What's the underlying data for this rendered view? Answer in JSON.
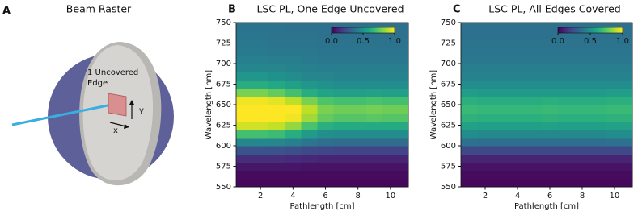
{
  "panel_a": {
    "label": "A",
    "title": "Beam Raster",
    "annotation_lines": [
      "1 Uncovered",
      "Edge"
    ],
    "x_arrow": "x",
    "y_arrow": "y"
  },
  "chart_data": [
    {
      "type": "heatmap",
      "panel_label": "B",
      "title": "LSC PL, One Edge Uncovered",
      "x_label": "Pathlength [cm]",
      "y_label": "Wavelength [nm]",
      "colormap": "viridis",
      "clim": [
        0,
        1
      ],
      "cticks": [
        {
          "value": 0,
          "label": "0.0"
        },
        {
          "value": 0.5,
          "label": "0.5"
        },
        {
          "value": 1,
          "label": "1.0"
        }
      ],
      "xlim": [
        0.5,
        11.1
      ],
      "xticks": [
        2,
        4,
        6,
        8,
        10
      ],
      "ylim": [
        550,
        750
      ],
      "yticks": [
        550,
        575,
        600,
        625,
        650,
        675,
        700,
        725,
        750
      ],
      "x": [
        1,
        2,
        3,
        4,
        5,
        6,
        7,
        8,
        9,
        10
      ],
      "y": [
        555,
        565,
        575,
        585,
        595,
        605,
        615,
        625,
        635,
        645,
        655,
        665,
        675,
        685,
        695,
        705,
        715,
        725,
        735,
        745
      ],
      "z": [
        [
          0.02,
          0.02,
          0.02,
          0.02,
          0.02,
          0.02,
          0.02,
          0.02,
          0.02,
          0.02
        ],
        [
          0.03,
          0.03,
          0.03,
          0.03,
          0.03,
          0.03,
          0.03,
          0.03,
          0.03,
          0.03
        ],
        [
          0.06,
          0.06,
          0.06,
          0.06,
          0.05,
          0.05,
          0.05,
          0.05,
          0.05,
          0.05
        ],
        [
          0.13,
          0.13,
          0.13,
          0.12,
          0.11,
          0.1,
          0.1,
          0.1,
          0.1,
          0.1
        ],
        [
          0.26,
          0.26,
          0.25,
          0.24,
          0.22,
          0.21,
          0.2,
          0.2,
          0.2,
          0.2
        ],
        [
          0.46,
          0.46,
          0.45,
          0.43,
          0.39,
          0.36,
          0.35,
          0.35,
          0.35,
          0.35
        ],
        [
          0.7,
          0.7,
          0.68,
          0.62,
          0.54,
          0.49,
          0.48,
          0.48,
          0.48,
          0.48
        ],
        [
          0.93,
          0.93,
          0.91,
          0.84,
          0.71,
          0.63,
          0.61,
          0.61,
          0.61,
          0.61
        ],
        [
          1,
          1,
          1,
          0.98,
          0.86,
          0.76,
          0.73,
          0.73,
          0.74,
          0.73
        ],
        [
          1,
          1,
          1,
          1,
          0.9,
          0.8,
          0.78,
          0.78,
          0.79,
          0.78
        ],
        [
          0.98,
          0.98,
          0.96,
          0.9,
          0.8,
          0.72,
          0.7,
          0.7,
          0.71,
          0.7
        ],
        [
          0.8,
          0.8,
          0.76,
          0.7,
          0.62,
          0.58,
          0.56,
          0.56,
          0.57,
          0.56
        ],
        [
          0.62,
          0.62,
          0.6,
          0.56,
          0.52,
          0.5,
          0.48,
          0.48,
          0.48,
          0.48
        ],
        [
          0.52,
          0.52,
          0.5,
          0.48,
          0.46,
          0.45,
          0.44,
          0.44,
          0.44,
          0.44
        ],
        [
          0.46,
          0.46,
          0.45,
          0.44,
          0.43,
          0.42,
          0.42,
          0.42,
          0.42,
          0.42
        ],
        [
          0.43,
          0.43,
          0.42,
          0.42,
          0.41,
          0.4,
          0.4,
          0.4,
          0.4,
          0.4
        ],
        [
          0.41,
          0.41,
          0.4,
          0.4,
          0.4,
          0.39,
          0.39,
          0.39,
          0.39,
          0.39
        ],
        [
          0.4,
          0.4,
          0.39,
          0.39,
          0.39,
          0.38,
          0.38,
          0.38,
          0.38,
          0.38
        ],
        [
          0.39,
          0.39,
          0.38,
          0.38,
          0.38,
          0.37,
          0.37,
          0.37,
          0.37,
          0.37
        ],
        [
          0.38,
          0.38,
          0.38,
          0.37,
          0.37,
          0.37,
          0.37,
          0.37,
          0.37,
          0.37
        ]
      ]
    },
    {
      "type": "heatmap",
      "panel_label": "C",
      "title": "LSC PL, All Edges Covered",
      "x_label": "Pathlength [cm]",
      "y_label": "Wavelength [nm]",
      "colormap": "viridis",
      "clim": [
        0,
        1
      ],
      "cticks": [
        {
          "value": 0,
          "label": "0.0"
        },
        {
          "value": 0.5,
          "label": "0.5"
        },
        {
          "value": 1,
          "label": "1.0"
        }
      ],
      "xlim": [
        0.5,
        11.1
      ],
      "xticks": [
        2,
        4,
        6,
        8,
        10
      ],
      "ylim": [
        550,
        750
      ],
      "yticks": [
        550,
        575,
        600,
        625,
        650,
        675,
        700,
        725,
        750
      ],
      "x": [
        1,
        2,
        3,
        4,
        5,
        6,
        7,
        8,
        9,
        10
      ],
      "y": [
        555,
        565,
        575,
        585,
        595,
        605,
        615,
        625,
        635,
        645,
        655,
        665,
        675,
        685,
        695,
        705,
        715,
        725,
        735,
        745
      ],
      "z": [
        [
          0.02,
          0.02,
          0.02,
          0.02,
          0.02,
          0.02,
          0.02,
          0.02,
          0.02,
          0.02
        ],
        [
          0.03,
          0.03,
          0.03,
          0.03,
          0.03,
          0.03,
          0.03,
          0.03,
          0.03,
          0.03
        ],
        [
          0.05,
          0.05,
          0.05,
          0.05,
          0.05,
          0.05,
          0.05,
          0.05,
          0.05,
          0.05
        ],
        [
          0.1,
          0.1,
          0.1,
          0.1,
          0.1,
          0.1,
          0.1,
          0.1,
          0.1,
          0.1
        ],
        [
          0.22,
          0.22,
          0.22,
          0.22,
          0.22,
          0.22,
          0.22,
          0.22,
          0.22,
          0.22
        ],
        [
          0.37,
          0.36,
          0.36,
          0.36,
          0.36,
          0.36,
          0.36,
          0.36,
          0.36,
          0.37
        ],
        [
          0.48,
          0.47,
          0.47,
          0.47,
          0.47,
          0.47,
          0.47,
          0.47,
          0.47,
          0.48
        ],
        [
          0.57,
          0.56,
          0.56,
          0.56,
          0.56,
          0.57,
          0.56,
          0.56,
          0.56,
          0.57
        ],
        [
          0.64,
          0.63,
          0.63,
          0.63,
          0.63,
          0.64,
          0.63,
          0.63,
          0.63,
          0.64
        ],
        [
          0.67,
          0.66,
          0.66,
          0.66,
          0.66,
          0.67,
          0.66,
          0.66,
          0.66,
          0.67
        ],
        [
          0.63,
          0.62,
          0.62,
          0.62,
          0.62,
          0.63,
          0.62,
          0.62,
          0.62,
          0.63
        ],
        [
          0.55,
          0.54,
          0.54,
          0.54,
          0.54,
          0.54,
          0.54,
          0.54,
          0.54,
          0.55
        ],
        [
          0.48,
          0.48,
          0.48,
          0.48,
          0.48,
          0.48,
          0.48,
          0.48,
          0.48,
          0.48
        ],
        [
          0.44,
          0.44,
          0.44,
          0.44,
          0.44,
          0.44,
          0.44,
          0.44,
          0.44,
          0.44
        ],
        [
          0.42,
          0.42,
          0.42,
          0.42,
          0.42,
          0.42,
          0.42,
          0.42,
          0.42,
          0.42
        ],
        [
          0.4,
          0.4,
          0.4,
          0.4,
          0.4,
          0.4,
          0.4,
          0.4,
          0.4,
          0.4
        ],
        [
          0.39,
          0.39,
          0.39,
          0.39,
          0.39,
          0.39,
          0.39,
          0.39,
          0.39,
          0.39
        ],
        [
          0.38,
          0.38,
          0.38,
          0.38,
          0.38,
          0.38,
          0.38,
          0.38,
          0.38,
          0.38
        ],
        [
          0.37,
          0.37,
          0.37,
          0.37,
          0.37,
          0.37,
          0.37,
          0.37,
          0.37,
          0.37
        ],
        [
          0.37,
          0.37,
          0.37,
          0.37,
          0.37,
          0.37,
          0.37,
          0.37,
          0.37,
          0.37
        ]
      ]
    }
  ]
}
